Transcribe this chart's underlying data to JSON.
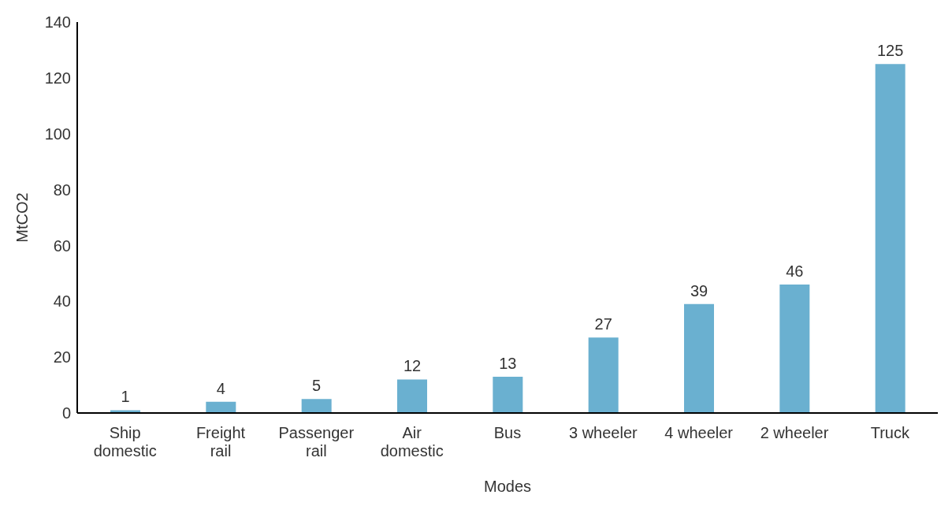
{
  "chart_data": {
    "type": "bar",
    "xlabel": "Modes",
    "ylabel": "MtCO2",
    "categories": [
      "Ship domestic",
      "Freight rail",
      "Passenger rail",
      "Air domestic",
      "Bus",
      "3 wheeler",
      "4 wheeler",
      "2 wheeler",
      "Truck"
    ],
    "values": [
      1,
      4,
      5,
      12,
      13,
      27,
      39,
      46,
      125
    ],
    "color": "#6ab0d0",
    "ylim": [
      0,
      140
    ],
    "yticks": [
      0,
      20,
      40,
      60,
      80,
      100,
      120,
      140
    ],
    "grid": false,
    "data_labels": true,
    "legend": false
  }
}
